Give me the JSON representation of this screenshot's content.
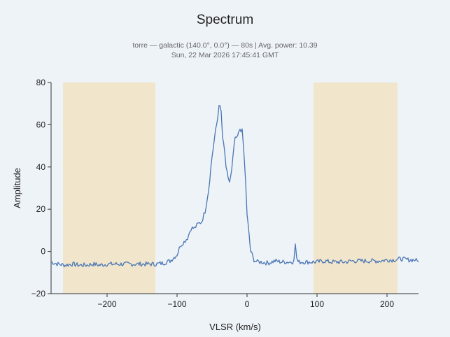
{
  "chart_data": {
    "type": "line",
    "title": "Spectrum",
    "subtitle_lines": [
      "torre — galactic (140.0°, 0.0°) — 80s | Avg. power: 10.39",
      "Sun, 22 Mar 2026 17:45:41 GMT"
    ],
    "xlabel": "VLSR (km/s)",
    "ylabel": "Amplitude",
    "xlim": [
      -280,
      245
    ],
    "ylim": [
      -20,
      80
    ],
    "xticks": [
      -200,
      -100,
      0,
      100,
      200
    ],
    "yticks": [
      -20,
      0,
      20,
      40,
      60,
      80
    ],
    "grid": false,
    "legend": "none",
    "shaded_regions": [
      {
        "x_start": -263,
        "x_end": -131
      },
      {
        "x_start": 95,
        "x_end": 215
      }
    ],
    "colors": {
      "line": "#4a76b4",
      "region": "#f1e6cc",
      "axis": "#333333"
    },
    "series": [
      {
        "points": [
          [
            -280,
            -5
          ],
          [
            -270,
            -6
          ],
          [
            -260,
            -6.5
          ],
          [
            -250,
            -6
          ],
          [
            -240,
            -6.5
          ],
          [
            -230,
            -6.5
          ],
          [
            -220,
            -6
          ],
          [
            -210,
            -6.5
          ],
          [
            -200,
            -6
          ],
          [
            -190,
            -6
          ],
          [
            -180,
            -6
          ],
          [
            -170,
            -6
          ],
          [
            -160,
            -6
          ],
          [
            -150,
            -6
          ],
          [
            -140,
            -6
          ],
          [
            -130,
            -6
          ],
          [
            -120,
            -5.5
          ],
          [
            -110,
            -4.5
          ],
          [
            -100,
            -1.5
          ],
          [
            -95,
            3
          ],
          [
            -90,
            4.5
          ],
          [
            -85,
            6.5
          ],
          [
            -80,
            11
          ],
          [
            -75,
            11
          ],
          [
            -70,
            13
          ],
          [
            -65,
            14
          ],
          [
            -60,
            19
          ],
          [
            -55,
            29
          ],
          [
            -50,
            45
          ],
          [
            -45,
            57
          ],
          [
            -42,
            63
          ],
          [
            -40,
            70
          ],
          [
            -37,
            66
          ],
          [
            -35,
            54
          ],
          [
            -32,
            47
          ],
          [
            -30,
            40
          ],
          [
            -27,
            34
          ],
          [
            -25,
            33
          ],
          [
            -22,
            38
          ],
          [
            -20,
            45
          ],
          [
            -17,
            54
          ],
          [
            -15,
            53
          ],
          [
            -12,
            56
          ],
          [
            -10,
            58
          ],
          [
            -7,
            57
          ],
          [
            -5,
            49
          ],
          [
            -2,
            33
          ],
          [
            0,
            17
          ],
          [
            3,
            8
          ],
          [
            5,
            0
          ],
          [
            8,
            -2
          ],
          [
            10,
            -4
          ],
          [
            15,
            -5
          ],
          [
            20,
            -5
          ],
          [
            30,
            -5.5
          ],
          [
            40,
            -4.5
          ],
          [
            50,
            -5
          ],
          [
            60,
            -5
          ],
          [
            65,
            -5
          ],
          [
            67,
            -3
          ],
          [
            69,
            3
          ],
          [
            71,
            -3
          ],
          [
            73,
            -5
          ],
          [
            80,
            -5
          ],
          [
            90,
            -5
          ],
          [
            100,
            -5
          ],
          [
            110,
            -4.5
          ],
          [
            120,
            -5
          ],
          [
            130,
            -5
          ],
          [
            140,
            -5
          ],
          [
            150,
            -4.5
          ],
          [
            160,
            -4.5
          ],
          [
            170,
            -4.5
          ],
          [
            180,
            -4.5
          ],
          [
            190,
            -4.5
          ],
          [
            200,
            -4
          ],
          [
            210,
            -4
          ],
          [
            220,
            -3.5
          ],
          [
            230,
            -4
          ],
          [
            240,
            -4
          ],
          [
            245,
            -5
          ]
        ]
      }
    ]
  }
}
